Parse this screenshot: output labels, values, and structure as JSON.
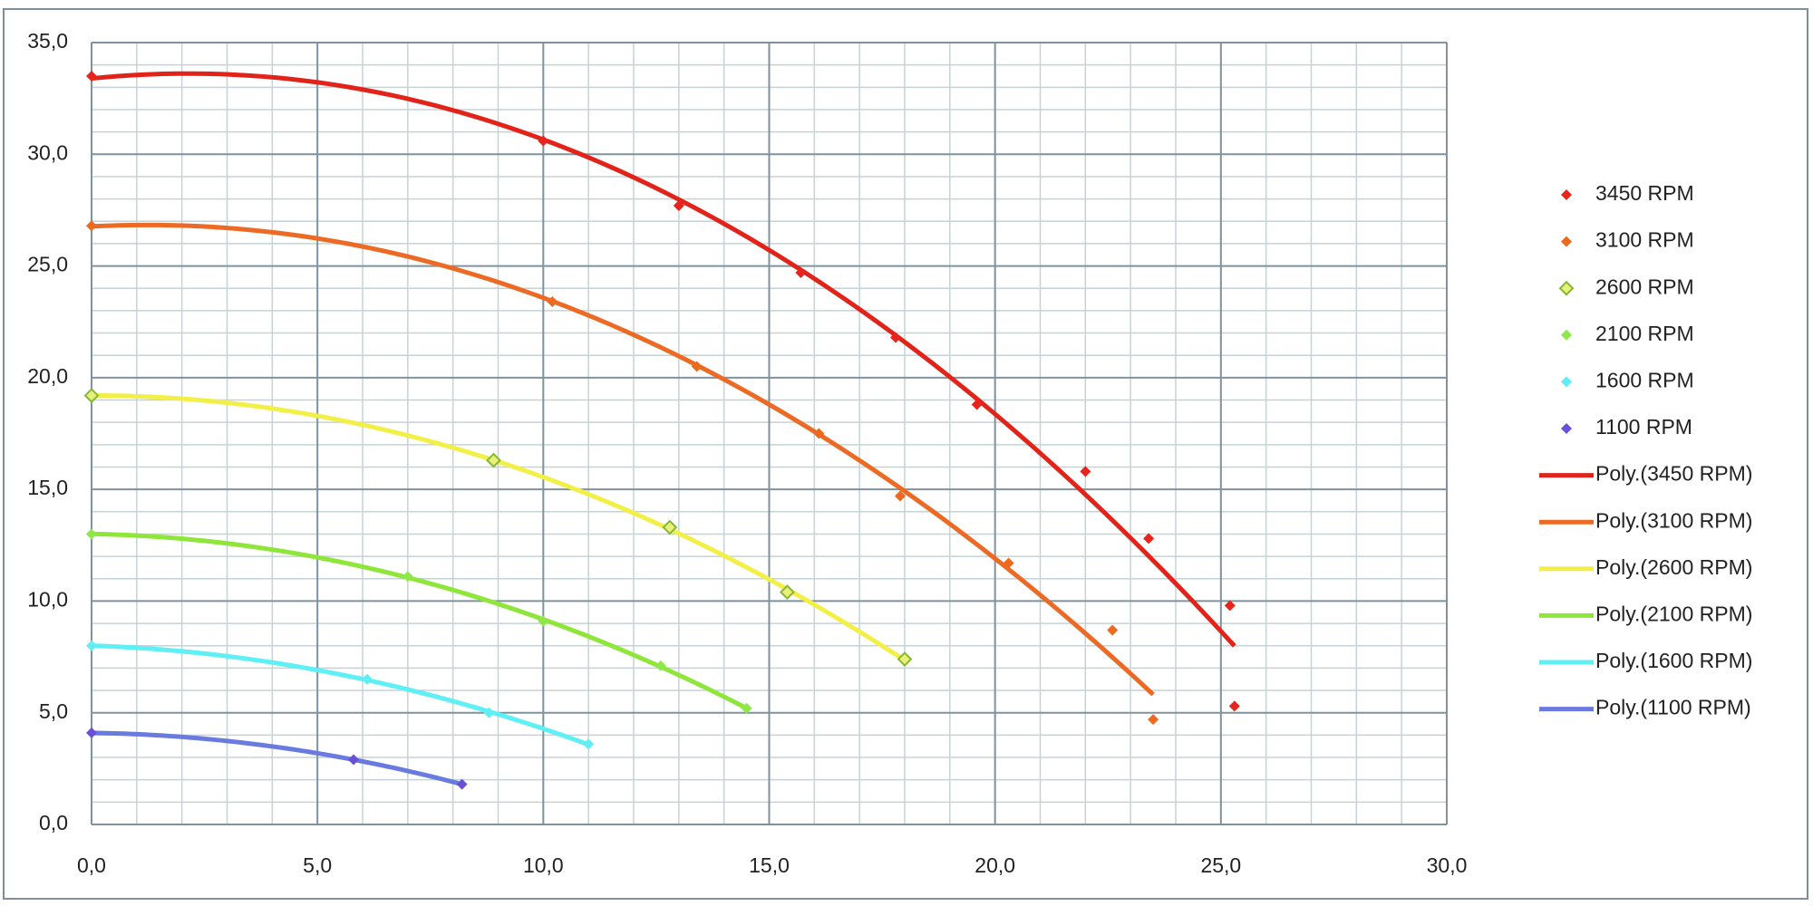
{
  "chart_data": {
    "type": "scatter",
    "xlim": [
      0,
      30
    ],
    "xticks": [
      {
        "value": 0,
        "label": "0,0"
      },
      {
        "value": 5,
        "label": "5,0"
      },
      {
        "value": 10,
        "label": "10,0"
      },
      {
        "value": 15,
        "label": "15,0"
      },
      {
        "value": 20,
        "label": "20,0"
      },
      {
        "value": 25,
        "label": "25,0"
      },
      {
        "value": 30,
        "label": "30,0"
      }
    ],
    "ylim": [
      0,
      35
    ],
    "yticks": [
      {
        "value": 0,
        "label": "0,0"
      },
      {
        "value": 5,
        "label": "5,0"
      },
      {
        "value": 10,
        "label": "10,0"
      },
      {
        "value": 15,
        "label": "15,0"
      },
      {
        "value": 20,
        "label": "20,0"
      },
      {
        "value": 25,
        "label": "25,0"
      },
      {
        "value": 30,
        "label": "30,0"
      },
      {
        "value": 35,
        "label": "35,0"
      }
    ],
    "xminorticks": [
      1,
      2,
      3,
      4,
      6,
      7,
      8,
      9,
      11,
      12,
      13,
      14,
      16,
      17,
      18,
      19,
      21,
      22,
      23,
      24,
      26,
      27,
      28,
      29
    ],
    "yminorticks": [
      1,
      2,
      3,
      4,
      6,
      7,
      8,
      9,
      11,
      12,
      13,
      14,
      16,
      17,
      18,
      19,
      21,
      22,
      23,
      24,
      26,
      27,
      28,
      29,
      31,
      32,
      33,
      34
    ],
    "grid": true,
    "legend": "right",
    "series": [
      {
        "name": "3450 RPM",
        "color": "#e8251d",
        "trendline_name": "Poly.(3450 RPM)",
        "trendline_color": "#e2231a",
        "x": [
          0,
          10.0,
          13.0,
          15.7,
          17.8,
          19.6,
          22.0,
          23.4,
          25.2,
          25.3
        ],
        "values": [
          33.5,
          30.6,
          27.7,
          24.7,
          21.8,
          18.8,
          15.8,
          12.8,
          9.8,
          5.3
        ]
      },
      {
        "name": "3100 RPM",
        "color": "#ec6a1f",
        "trendline_name": "Poly.(3100 RPM)",
        "trendline_color": "#ec6a24",
        "x": [
          0,
          10.2,
          13.4,
          16.1,
          17.9,
          20.3,
          22.6,
          23.5
        ],
        "values": [
          26.8,
          23.4,
          20.5,
          17.5,
          14.7,
          11.7,
          8.7,
          4.7
        ]
      },
      {
        "name": "2600 RPM",
        "color": "#e8f07a",
        "marker_edge": "#86b832",
        "trendline_name": "Poly.(2600 RPM)",
        "trendline_color": "#f2f046",
        "x": [
          0,
          8.9,
          12.8,
          15.4,
          18.0
        ],
        "values": [
          19.2,
          16.3,
          13.3,
          10.4,
          7.4
        ]
      },
      {
        "name": "2100 RPM",
        "color": "#8ee84a",
        "trendline_name": "Poly.(2100 RPM)",
        "trendline_color": "#8ee63a",
        "x": [
          0,
          7.0,
          10.0,
          12.6,
          14.5
        ],
        "values": [
          13.0,
          11.1,
          9.1,
          7.1,
          5.2
        ]
      },
      {
        "name": "1600 RPM",
        "color": "#5eeef4",
        "trendline_name": "Poly.(1600 RPM)",
        "trendline_color": "#5ef0f4",
        "x": [
          0,
          6.1,
          8.8,
          11.0
        ],
        "values": [
          8.0,
          6.5,
          5.0,
          3.6
        ]
      },
      {
        "name": "1100 RPM",
        "color": "#6a4fd8",
        "trendline_name": "Poly.(1100 RPM)",
        "trendline_color": "#6a7be0",
        "x": [
          0,
          5.8,
          8.2
        ],
        "values": [
          4.1,
          2.9,
          1.8
        ]
      }
    ]
  }
}
